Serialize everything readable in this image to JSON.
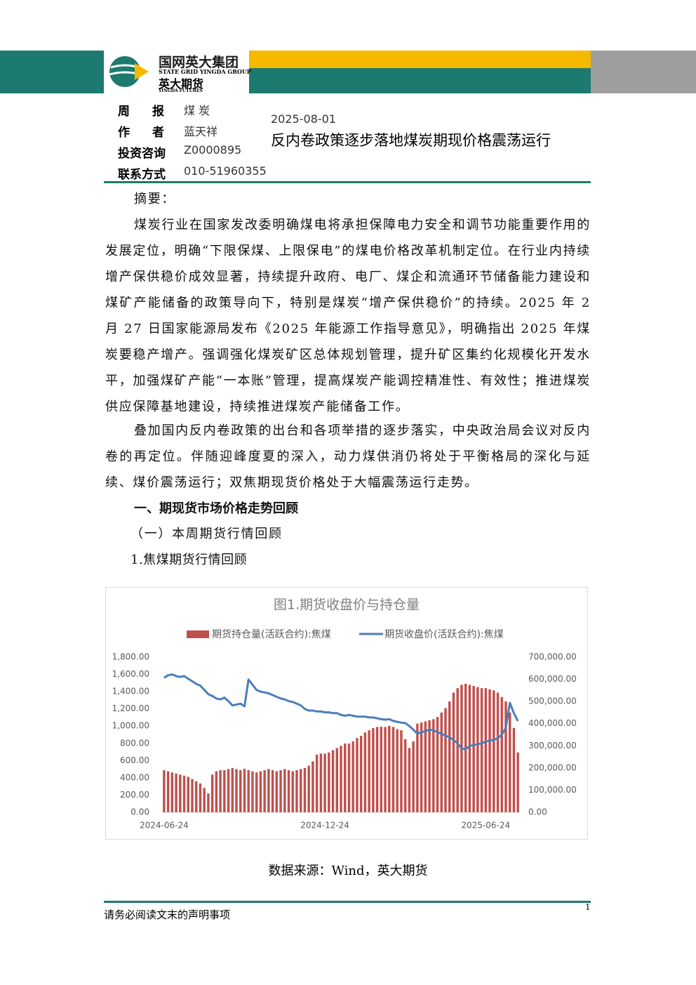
{
  "header": {
    "logo_cn": "国网英大集团",
    "logo_en": "STATE GRID YINGDA GROUP",
    "brand_cn": "英大期货",
    "brand_en": "YINGDA FUTURES"
  },
  "meta": {
    "rows": [
      [
        "周报",
        "煤 炭"
      ],
      [
        "作者",
        "蓝天祥"
      ],
      [
        "投资咨询",
        "Z0000895"
      ],
      [
        "联系方式",
        "010-51960355"
      ]
    ],
    "date": "2025-08-01",
    "title": "反内卷政策逐步落地煤炭期现价格震荡运行"
  },
  "body": {
    "abstract_label": "摘要：",
    "paragraphs": [
      "煤炭行业在国家发改委明确煤电将承担保障电力安全和调节功能重要作用的发展定位，明确“下限保煤、上限保电”的煤电价格改革机制定位。在行业内持续增产保供稳价成效显著，持续提升政府、电厂、煤企和流通环节储备能力建设和煤矿产能储备的政策导向下，特别是煤炭“增产保供稳价”的持续。2025 年 2 月 27 日国家能源局发布《2025 年能源工作指导意见》，明确指出 2025 年煤炭要稳产增产。强调强化煤炭矿区总体规划管理，提升矿区集约化规模化开发水平，加强煤矿产能“一本账”管理，提高煤炭产能调控精准性、有效性；推进煤炭供应保障基地建设，持续推进煤炭产能储备工作。",
      "叠加国内反内卷政策的出台和各项举措的逐步落实，中央政治局会议对反内卷的再定位。伴随迎峰度夏的深入，动力煤供消仍将处于平衡格局的深化与延续、煤价震荡运行；双焦期现货价格处于大幅震荡运行走势。"
    ],
    "section": "一、期现货市场价格走势回顾",
    "subsection": "（一）本周期货行情回顾",
    "subsubsection": "1.焦煤期货行情回顾",
    "source": "数据来源：Wind，英大期货"
  },
  "footer": {
    "notice": "请务必阅读文末的声明事项",
    "page": "1"
  },
  "chart_data": {
    "type": "bar-line",
    "title": "图1.期货收盘价与持仓量",
    "categories": [
      "2024-06-24",
      null,
      null,
      null,
      null,
      null,
      null,
      null,
      null,
      null,
      null,
      null,
      null,
      null,
      null,
      null,
      null,
      null,
      null,
      null,
      null,
      null,
      null,
      null,
      null,
      null,
      null,
      null,
      null,
      null,
      null,
      null,
      null,
      null,
      null,
      null,
      null,
      null,
      null,
      null,
      "2024-12-24",
      null,
      null,
      null,
      null,
      null,
      null,
      null,
      null,
      null,
      null,
      null,
      null,
      null,
      null,
      null,
      null,
      null,
      null,
      null,
      null,
      null,
      null,
      null,
      null,
      null,
      null,
      null,
      null,
      null,
      null,
      null,
      null,
      null,
      null,
      null,
      null,
      null,
      null,
      null,
      "2025-06-24",
      null,
      null,
      null,
      null,
      null,
      null,
      null,
      null
    ],
    "series": [
      {
        "name": "期货持仓量(活跃合约):焦煤",
        "type": "bar",
        "axis": "y2",
        "color": "#c0504d",
        "values": [
          190000,
          185000,
          180000,
          175000,
          170000,
          165000,
          160000,
          150000,
          140000,
          130000,
          110000,
          85000,
          170000,
          185000,
          190000,
          190000,
          195000,
          200000,
          195000,
          190000,
          196000,
          190000,
          185000,
          180000,
          185000,
          190000,
          195000,
          190000,
          185000,
          190000,
          195000,
          190000,
          185000,
          190000,
          195000,
          200000,
          210000,
          230000,
          260000,
          265000,
          265000,
          270000,
          280000,
          290000,
          300000,
          310000,
          310000,
          320000,
          335000,
          345000,
          360000,
          370000,
          380000,
          385000,
          386000,
          385000,
          390000,
          385000,
          375000,
          370000,
          330000,
          290000,
          320000,
          400000,
          405000,
          410000,
          415000,
          420000,
          430000,
          450000,
          470000,
          500000,
          540000,
          560000,
          575000,
          580000,
          575000,
          570000,
          565000,
          560000,
          560000,
          555000,
          550000,
          540000,
          520000,
          500000,
          450000,
          380000,
          270000
        ]
      },
      {
        "name": "期货收盘价(活跃合约):焦煤",
        "type": "line",
        "color": "#4a7ebb",
        "values": [
          1560,
          1590,
          1600,
          1580,
          1570,
          1580,
          1550,
          1520,
          1490,
          1470,
          1420,
          1370,
          1350,
          1320,
          1310,
          1330,
          1290,
          1240,
          1250,
          1260,
          1230,
          1540,
          1480,
          1420,
          1400,
          1390,
          1380,
          1360,
          1340,
          1320,
          1310,
          1290,
          1280,
          1260,
          1240,
          1200,
          1180,
          1180,
          1170,
          1170,
          1160,
          1160,
          1150,
          1150,
          1130,
          1120,
          1130,
          1120,
          1110,
          1110,
          1110,
          1100,
          1100,
          1090,
          1080,
          1075,
          1080,
          1060,
          1050,
          1040,
          1035,
          1000,
          960,
          910,
          930,
          940,
          960,
          950,
          930,
          910,
          890,
          870,
          840,
          800,
          740,
          730,
          770,
          780,
          790,
          800,
          820,
          830,
          840,
          860,
          900,
          980,
          1270,
          1150,
          1060
        ]
      }
    ],
    "ylim": [
      0,
      1800
    ],
    "yticks": [
      {
        "value": 0,
        "label": "0.00"
      },
      {
        "value": 200,
        "label": "200.00"
      },
      {
        "value": 400,
        "label": "400.00"
      },
      {
        "value": 600,
        "label": "600.00"
      },
      {
        "value": 800,
        "label": "800.00"
      },
      {
        "value": 1000,
        "label": "1,000.00"
      },
      {
        "value": 1200,
        "label": "1,200.00"
      },
      {
        "value": 1400,
        "label": "1,400.00"
      },
      {
        "value": 1600,
        "label": "1,600.00"
      },
      {
        "value": 1800,
        "label": "1,800.00"
      }
    ],
    "y2lim": [
      0,
      700000
    ],
    "y2ticks": [
      {
        "value": 0,
        "label": "0.00"
      },
      {
        "value": 100000,
        "label": "100,000.00"
      },
      {
        "value": 200000,
        "label": "200,000.00"
      },
      {
        "value": 300000,
        "label": "300,000.00"
      },
      {
        "value": 400000,
        "label": "400,000.00"
      },
      {
        "value": 500000,
        "label": "500,000.00"
      },
      {
        "value": 600000,
        "label": "600,000.00"
      },
      {
        "value": 700000,
        "label": "700,000.00"
      }
    ],
    "legend": "top",
    "grid": false
  }
}
